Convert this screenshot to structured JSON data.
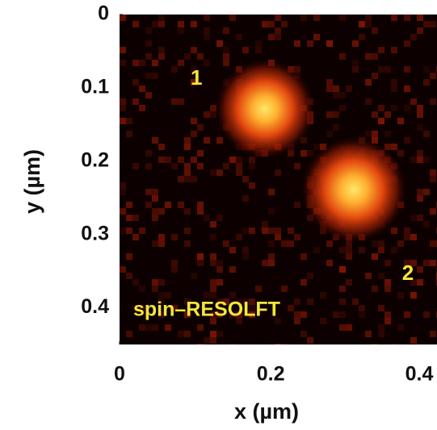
{
  "chart_data": {
    "type": "image",
    "x_label": "x (µm)",
    "y_label": "y (µm)",
    "xlim": [
      0,
      0.42
    ],
    "ylim": [
      0,
      0.45
    ],
    "xticks": [
      0,
      0.2,
      0.4
    ],
    "yticks": [
      0,
      0.1,
      0.2,
      0.3,
      0.4
    ],
    "annotations": [
      "1",
      "2",
      "spin–RESOLFT"
    ],
    "annotation_color": "#f5e63c"
  }
}
